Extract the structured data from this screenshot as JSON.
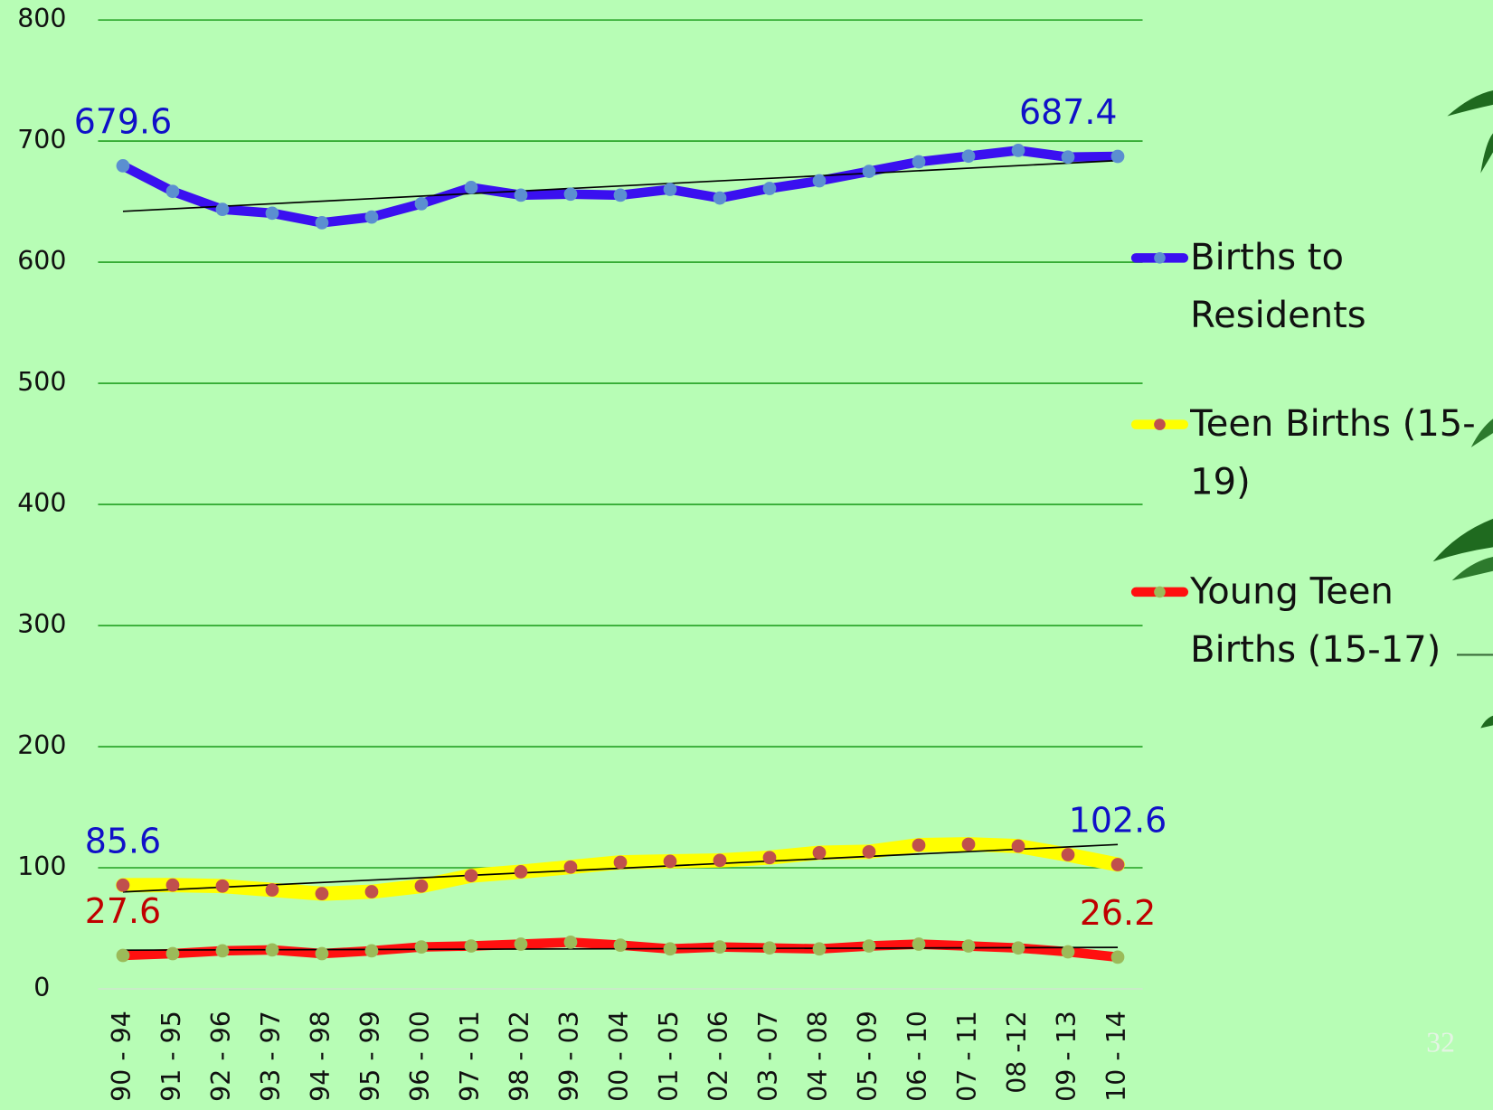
{
  "chart_data": {
    "type": "line",
    "categories": [
      "90 - 94",
      "91 - 95",
      "92 - 96",
      "93 - 97",
      "94 - 98",
      "95 - 99",
      "96 - 00",
      "97 - 01",
      "98 - 02",
      "99 - 03",
      "00 - 04",
      "01 - 05",
      "02 - 06",
      "03 - 07",
      "04 - 08",
      "05 - 09",
      "06 - 10",
      "07 - 11",
      "08 -12",
      "09 - 13",
      "10 - 14"
    ],
    "series": [
      {
        "name": "Births to Residents",
        "color": "#3a10f0",
        "marker_color": "#5b8fd0",
        "label_color": "#1010c8",
        "values": [
          679.6,
          658.5,
          643.6,
          640.5,
          632.6,
          637.3,
          648.3,
          661.7,
          655.4,
          656.2,
          655.4,
          660.1,
          653.0,
          660.9,
          667.2,
          675.0,
          682.9,
          687.6,
          692.3,
          686.8,
          687.4
        ],
        "value_labels": [
          "679.6",
          null,
          null,
          null,
          null,
          null,
          null,
          null,
          null,
          null,
          null,
          null,
          null,
          null,
          null,
          null,
          null,
          null,
          null,
          null,
          "687.4"
        ]
      },
      {
        "name": "Teen Births (15-19)",
        "color": "#ffff00",
        "marker_color": "#c0504d",
        "label_color": "#1010c8",
        "values": [
          85.6,
          85.7,
          84.9,
          81.7,
          78.6,
          80.2,
          84.9,
          93.5,
          96.7,
          100.6,
          104.5,
          105.3,
          106.1,
          108.4,
          112.4,
          113.2,
          118.7,
          119.4,
          117.9,
          110.8,
          102.6
        ],
        "value_labels": [
          "85.6",
          null,
          null,
          null,
          null,
          null,
          null,
          null,
          null,
          null,
          null,
          null,
          null,
          null,
          null,
          null,
          null,
          null,
          null,
          null,
          "102.6"
        ]
      },
      {
        "name": "Young Teen Births (15-17)",
        "color": "#ff1010",
        "marker_color": "#9bbb59",
        "label_color": "#c00000",
        "values": [
          27.6,
          29.1,
          31.4,
          32.2,
          29.1,
          31.4,
          34.6,
          35.4,
          36.9,
          38.5,
          36.1,
          33.0,
          34.6,
          33.8,
          33.0,
          35.4,
          36.9,
          35.4,
          33.8,
          30.6,
          26.2
        ],
        "value_labels": [
          "27.6",
          null,
          null,
          null,
          null,
          null,
          null,
          null,
          null,
          null,
          null,
          null,
          null,
          null,
          null,
          null,
          null,
          null,
          null,
          null,
          "26.2"
        ]
      }
    ],
    "ylim": [
      0,
      800
    ],
    "yticks": [
      0,
      100,
      200,
      300,
      400,
      500,
      600,
      700,
      800
    ],
    "grid": true,
    "trendline": true,
    "legend": "right"
  },
  "slide_number": "32"
}
